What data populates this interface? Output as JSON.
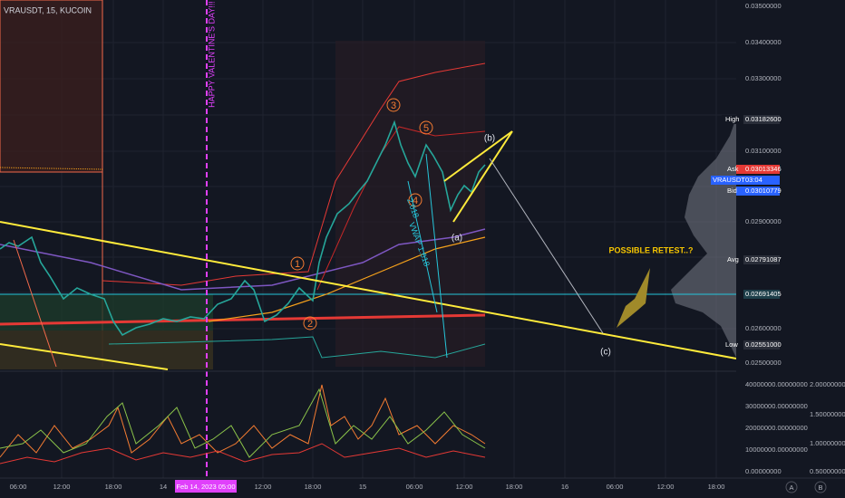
{
  "header": {
    "title": "VRAUSDT, 15, KUCOIN"
  },
  "annotations": {
    "valentine": "HAPPY VALENTINE'S DAY!!!",
    "retest": "POSSIBLE RETEST..?",
    "b": "(b)",
    "a": "(a)",
    "c": "(c)",
    "w1": "1",
    "w2": "2",
    "w3": "3",
    "w4": "4",
    "w5": "5",
    "vwap1": "VWAP 1.618",
    "vwap2": "2.618"
  },
  "price_axis": {
    "ticks": [
      "0.03500000",
      "0.03400000",
      "0.03300000",
      "0.03100000",
      "0.02900000",
      "0.02600000",
      "0.02500000"
    ],
    "high": {
      "tag": "High",
      "price": "0.03182600"
    },
    "ask": {
      "tag": "Ask",
      "price": "0.03013346"
    },
    "symbol": {
      "tag": "VRAUSDT",
      "price": "03:04"
    },
    "bid": {
      "tag": "Bid",
      "price": "0.03010779"
    },
    "avg": {
      "tag": "Avg",
      "price": "0.02791087"
    },
    "level": {
      "price": "0.02691405"
    },
    "low": {
      "tag": "Low",
      "price": "0.02551000"
    }
  },
  "indicator_axis": {
    "left": [
      "40000000.00000000",
      "30000000.00000000",
      "20000000.00000000",
      "10000000.00000000",
      "0.00000000"
    ],
    "right": [
      "2.00000000",
      "1.50000000",
      "1.00000000",
      "0.50000000"
    ]
  },
  "time_axis": {
    "labels": [
      "06:00",
      "12:00",
      "18:00",
      "14",
      "12:00",
      "18:00",
      "15",
      "06:00",
      "12:00",
      "18:00",
      "16",
      "06:00",
      "12:00",
      "18:00"
    ],
    "cursor": "Feb 14, 2023   05:00"
  },
  "footer": {
    "a": "A",
    "b": "B"
  }
}
